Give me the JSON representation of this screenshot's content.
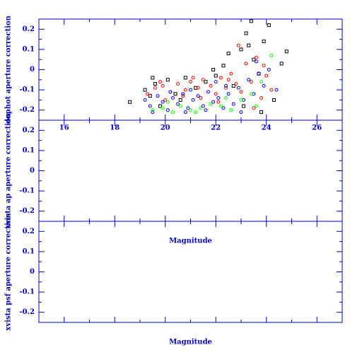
{
  "chart_data": [
    {
      "type": "scatter",
      "y_label": "dophot aperture correction",
      "xlim": [
        15,
        27
      ],
      "xticks": [
        16,
        18,
        20,
        22,
        24,
        26
      ],
      "ylim": [
        -0.25,
        0.25
      ],
      "yticks": [
        -0.2,
        -0.1,
        0,
        0.1,
        0.2
      ],
      "series": [
        {
          "name": "black",
          "color": "#000000",
          "marker": "square",
          "x": [
            18.6,
            19.2,
            19.4,
            19.6,
            19.8,
            20.1,
            20.4,
            20.8,
            21.2,
            21.6,
            22.0,
            22.3,
            22.7,
            23.0,
            23.2,
            23.4,
            23.5,
            23.7,
            23.9,
            24.1,
            24.3,
            24.6,
            23.1,
            22.5,
            21.9,
            20.6,
            19.5,
            23.8,
            24.8,
            23.3
          ],
          "values": [
            -0.16,
            -0.1,
            -0.13,
            -0.07,
            -0.18,
            -0.05,
            -0.12,
            -0.04,
            -0.09,
            -0.06,
            -0.03,
            0.02,
            -0.08,
            0.1,
            0.18,
            0.24,
            0.05,
            -0.02,
            0.14,
            0.22,
            -0.15,
            0.03,
            -0.18,
            0.08,
            0.0,
            -0.15,
            -0.04,
            -0.21,
            0.09,
            0.12
          ]
        },
        {
          "name": "red",
          "color": "#ff0000",
          "marker": "circle",
          "x": [
            19.3,
            19.6,
            19.9,
            20.2,
            20.5,
            20.8,
            21.0,
            21.3,
            21.5,
            21.8,
            22.0,
            22.2,
            22.4,
            22.6,
            22.8,
            23.0,
            23.2,
            23.4,
            23.6,
            23.8,
            24.0,
            20.0,
            20.7,
            21.4,
            22.1,
            22.9,
            23.5,
            19.8,
            21.1,
            22.5,
            23.9,
            24.2
          ],
          "values": [
            -0.12,
            -0.09,
            -0.08,
            -0.11,
            -0.07,
            -0.1,
            -0.06,
            -0.09,
            -0.05,
            -0.08,
            -0.12,
            -0.04,
            -0.09,
            -0.02,
            -0.07,
            -0.11,
            0.03,
            -0.06,
            0.06,
            -0.14,
            -0.03,
            -0.15,
            -0.13,
            -0.14,
            -0.16,
            0.12,
            -0.19,
            -0.06,
            -0.04,
            -0.05,
            0.02,
            -0.1
          ]
        },
        {
          "name": "blue",
          "color": "#0000ff",
          "marker": "circle",
          "x": [
            19.2,
            19.4,
            19.7,
            19.9,
            20.1,
            20.3,
            20.5,
            20.7,
            20.9,
            21.1,
            21.3,
            21.5,
            21.7,
            21.9,
            22.1,
            22.3,
            22.5,
            22.7,
            22.9,
            23.1,
            23.3,
            23.5,
            23.7,
            23.9,
            24.1,
            24.4,
            20.2,
            20.8,
            21.6,
            22.4,
            23.0,
            23.6,
            19.5,
            21.0,
            22.0
          ],
          "values": [
            -0.15,
            -0.18,
            -0.13,
            -0.16,
            -0.2,
            -0.14,
            -0.17,
            -0.12,
            -0.19,
            -0.15,
            -0.13,
            -0.18,
            -0.11,
            -0.16,
            -0.14,
            -0.19,
            -0.12,
            -0.17,
            -0.09,
            -0.15,
            -0.05,
            -0.12,
            -0.02,
            -0.08,
            0.0,
            -0.1,
            -0.11,
            -0.21,
            -0.2,
            -0.08,
            -0.21,
            0.04,
            -0.21,
            -0.1,
            -0.06
          ]
        },
        {
          "name": "green",
          "color": "#00ff00",
          "marker": "circle",
          "x": [
            19.5,
            19.9,
            20.3,
            20.6,
            21.0,
            21.4,
            21.8,
            22.2,
            22.6,
            23.0,
            23.4,
            23.8,
            20.1,
            21.2,
            22.4,
            23.6,
            24.2
          ],
          "values": [
            -0.2,
            -0.19,
            -0.21,
            -0.18,
            -0.2,
            -0.19,
            -0.17,
            -0.18,
            -0.2,
            -0.15,
            -0.12,
            -0.06,
            -0.16,
            -0.21,
            -0.14,
            -0.18,
            0.07
          ]
        }
      ]
    },
    {
      "type": "scatter",
      "y_label": "xvista ap aperture correction",
      "x_label": "Magnitude",
      "xlim": [
        15,
        27
      ],
      "ylim": [
        -0.25,
        0.25
      ],
      "yticks": [
        -0.2,
        -0.1,
        0,
        0.1,
        0.2
      ],
      "series": []
    },
    {
      "type": "scatter",
      "y_label": "xvista psf aperture correction",
      "x_label": "Magnitude",
      "xlim": [
        15,
        27
      ],
      "ylim": [
        -0.25,
        0.25
      ],
      "yticks": [
        -0.2,
        -0.1,
        0,
        0.1,
        0.2
      ],
      "series": []
    }
  ]
}
